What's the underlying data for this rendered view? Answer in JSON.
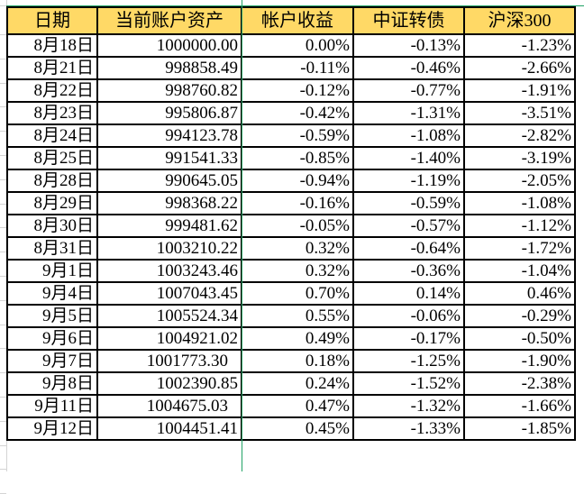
{
  "sheet": {
    "header_color": "#FFD966",
    "selection_color": "#21A366",
    "columns": [
      "日期",
      "当前账户资产",
      "帐户收益",
      "中证转债",
      "沪深300"
    ],
    "rows": [
      [
        "8月18日",
        "1000000.00",
        "0.00%",
        "-0.13%",
        "-1.23%"
      ],
      [
        "8月21日",
        "998858.49",
        "-0.11%",
        "-0.46%",
        "-2.66%"
      ],
      [
        "8月22日",
        "998760.82",
        "-0.12%",
        "-0.77%",
        "-1.91%"
      ],
      [
        "8月23日",
        "995806.87",
        "-0.42%",
        "-1.31%",
        "-3.51%"
      ],
      [
        "8月24日",
        "994123.78",
        "-0.59%",
        "-1.08%",
        "-2.82%"
      ],
      [
        "8月25日",
        "991541.33",
        "-0.85%",
        "-1.40%",
        "-3.19%"
      ],
      [
        "8月28日",
        "990645.05",
        "-0.94%",
        "-1.19%",
        "-2.05%"
      ],
      [
        "8月29日",
        "998368.22",
        "-0.16%",
        "-0.59%",
        "-1.08%"
      ],
      [
        "8月30日",
        "999481.62",
        "-0.05%",
        "-0.57%",
        "-1.12%"
      ],
      [
        "8月31日",
        "1003210.22",
        "0.32%",
        "-0.64%",
        "-1.72%"
      ],
      [
        "9月1日",
        "1003243.46",
        "0.32%",
        "-0.36%",
        "-1.04%"
      ],
      [
        "9月4日",
        "1007043.45",
        "0.70%",
        "0.14%",
        "0.46%"
      ],
      [
        "9月5日",
        "1005524.34",
        "0.55%",
        "-0.06%",
        "-0.29%"
      ],
      [
        "9月6日",
        "1004921.02",
        "0.49%",
        "-0.17%",
        "-0.50%"
      ],
      [
        "9月7日",
        "1001773.30",
        "0.18%",
        "-1.25%",
        "-1.90%"
      ],
      [
        "9月8日",
        "1002390.85",
        "0.24%",
        "-1.52%",
        "-2.38%"
      ],
      [
        "9月11日",
        "1004675.03",
        "0.47%",
        "-1.32%",
        "-1.66%"
      ],
      [
        "9月12日",
        "1004451.41",
        "0.45%",
        "-1.33%",
        "-1.85%"
      ]
    ]
  }
}
